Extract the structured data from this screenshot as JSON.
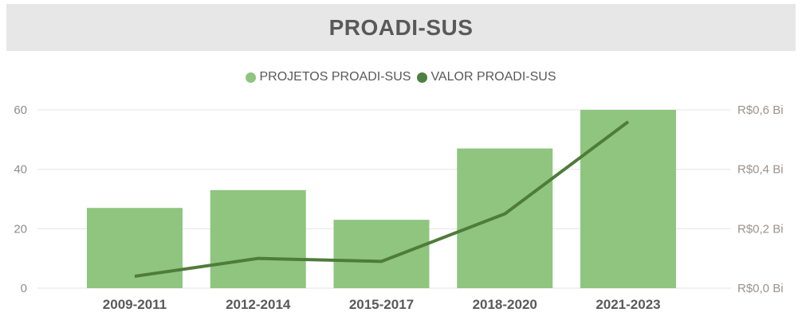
{
  "header": {
    "title": "PROADI-SUS"
  },
  "legend": [
    {
      "label": "PROJETOS PROADI-SUS",
      "color": "#8FC57F"
    },
    {
      "label": "VALOR PROADI-SUS",
      "color": "#4E8040"
    }
  ],
  "colors": {
    "header_bg": "#E7E7E7",
    "title_text": "#595959",
    "bar": "#8FC57F",
    "line": "#4E7C3A",
    "grid": "#E6E6E6",
    "left_axis_text": "#8E8E8E",
    "right_axis_text": "#9A938C",
    "category_text": "#595959",
    "legend_text": "#595959"
  },
  "chart_data": {
    "type": "bar",
    "title": "PROADI-SUS",
    "categories": [
      "2009-2011",
      "2012-2014",
      "2015-2017",
      "2018-2020",
      "2021-2023"
    ],
    "series": [
      {
        "name": "PROJETOS PROADI-SUS",
        "type": "bar",
        "axis": "left",
        "values": [
          27,
          33,
          23,
          47,
          60
        ]
      },
      {
        "name": "VALOR PROADI-SUS",
        "type": "line",
        "axis": "right",
        "values": [
          0.04,
          0.1,
          0.09,
          0.25,
          0.56
        ]
      }
    ],
    "left_axis": {
      "ticks": [
        "0",
        "20",
        "40",
        "60"
      ],
      "tick_values": [
        0,
        20,
        40,
        60
      ],
      "min": 0,
      "max": 60
    },
    "right_axis": {
      "ticks": [
        "R$0,0 Bi",
        "R$0,2 Bi",
        "R$0,4 Bi",
        "R$0,6 Bi"
      ],
      "tick_values": [
        0,
        0.2,
        0.4,
        0.6
      ],
      "min": 0,
      "max": 0.6
    },
    "grid": true,
    "legend_position": "top"
  }
}
